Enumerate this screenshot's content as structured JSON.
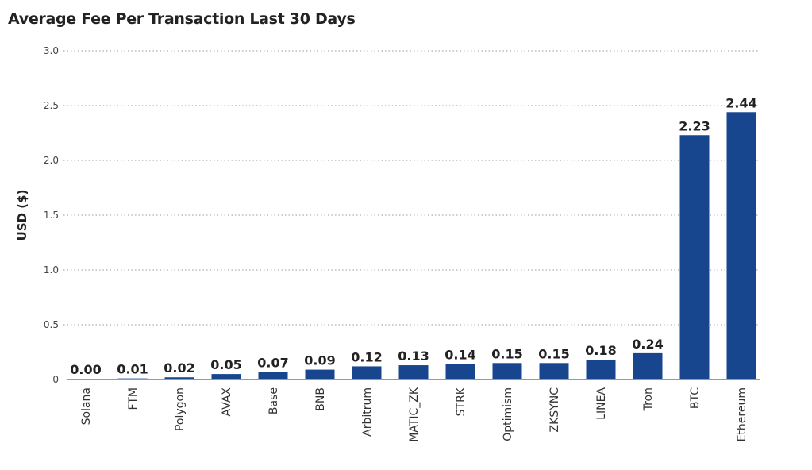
{
  "title": "Average Fee Per Transaction Last 30 Days",
  "colors": {
    "bar": "#17468e",
    "grid": "#9a9a9a",
    "axis": "#333333"
  },
  "chart_data": {
    "type": "bar",
    "title": "Average Fee Per Transaction Last 30 Days",
    "xlabel": "",
    "ylabel": "USD ($)",
    "ylim": [
      0,
      3.0
    ],
    "yticks": [
      "0",
      "0.5",
      "1.0",
      "1.5",
      "2.0",
      "2.5",
      "3.0"
    ],
    "ytick_values": [
      0,
      0.5,
      1.0,
      1.5,
      2.0,
      2.5,
      3.0
    ],
    "grid": true,
    "categories": [
      "Solana",
      "FTM",
      "Polygon",
      "AVAX",
      "Base",
      "BNB",
      "Arbitrum",
      "MATIC_ZK",
      "STRK",
      "Optimism",
      "ZKSYNC",
      "LINEA",
      "Tron",
      "BTC",
      "Ethereum"
    ],
    "values": [
      0.0,
      0.01,
      0.02,
      0.05,
      0.07,
      0.09,
      0.12,
      0.13,
      0.14,
      0.15,
      0.15,
      0.18,
      0.24,
      2.23,
      2.44
    ],
    "data_labels": [
      "0.00",
      "0.01",
      "0.02",
      "0.05",
      "0.07",
      "0.09",
      "0.12",
      "0.13",
      "0.14",
      "0.15",
      "0.15",
      "0.18",
      "0.24",
      "2.23",
      "2.44"
    ]
  }
}
